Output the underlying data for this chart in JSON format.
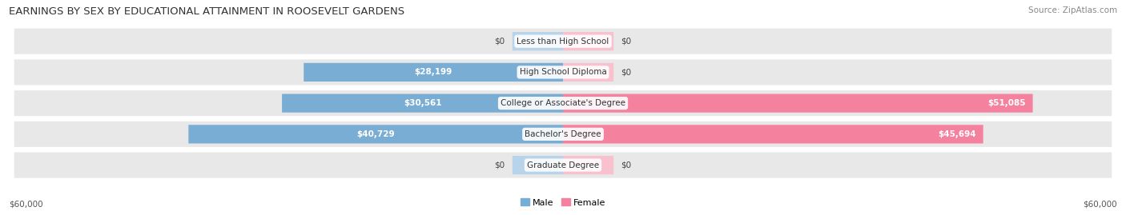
{
  "title": "EARNINGS BY SEX BY EDUCATIONAL ATTAINMENT IN ROOSEVELT GARDENS",
  "source": "Source: ZipAtlas.com",
  "categories": [
    "Less than High School",
    "High School Diploma",
    "College or Associate's Degree",
    "Bachelor's Degree",
    "Graduate Degree"
  ],
  "male_values": [
    0,
    28199,
    30561,
    40729,
    0
  ],
  "female_values": [
    0,
    0,
    51085,
    45694,
    0
  ],
  "male_labels": [
    "$0",
    "$28,199",
    "$30,561",
    "$40,729",
    "$0"
  ],
  "female_labels": [
    "$0",
    "$0",
    "$51,085",
    "$45,694",
    "$0"
  ],
  "male_color": "#7aadd4",
  "female_color": "#f4819e",
  "male_color_light": "#b8d4ea",
  "female_color_light": "#f9c0ce",
  "max_value": 60000,
  "stub_size": 5500,
  "x_label_left": "$60,000",
  "x_label_right": "$60,000",
  "row_bg_color": "#e8e8e8",
  "background_color": "#ffffff",
  "title_fontsize": 9.5,
  "source_fontsize": 7.5,
  "label_fontsize": 7.5,
  "category_fontsize": 7.5,
  "bar_height": 0.58,
  "white_label_threshold": 12000
}
